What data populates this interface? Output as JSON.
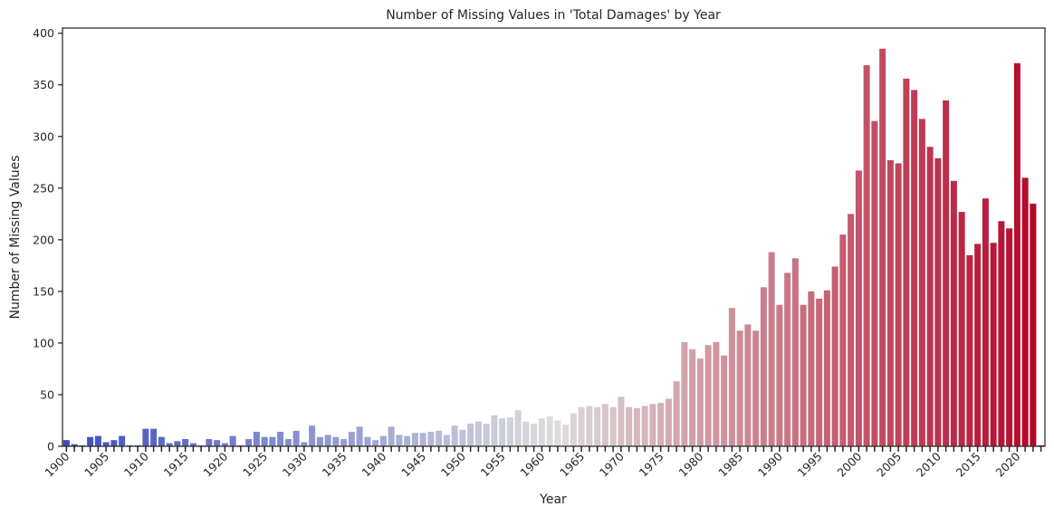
{
  "chart_data": {
    "type": "bar",
    "title": "Number of Missing Values in 'Total Damages' by Year",
    "xlabel": "Year",
    "ylabel": "Number of Missing Values",
    "ylim": [
      0,
      405
    ],
    "yticks": [
      0,
      50,
      100,
      150,
      200,
      250,
      300,
      350,
      400
    ],
    "x_tick_labels": [
      "1900",
      "1905",
      "1910",
      "1915",
      "1920",
      "1925",
      "1930",
      "1935",
      "1940",
      "1945",
      "1950",
      "1955",
      "1960",
      "1965",
      "1970",
      "1975",
      "1980",
      "1985",
      "1990",
      "1995",
      "2000",
      "2005",
      "2010",
      "2015",
      "2020"
    ],
    "grid": false,
    "colormap": "coolwarm",
    "colormap_stops": [
      "#3b4cc0",
      "#dddddd",
      "#b40426"
    ],
    "categories": [
      1900,
      1901,
      1902,
      1903,
      1904,
      1905,
      1906,
      1907,
      1908,
      1909,
      1910,
      1911,
      1912,
      1913,
      1914,
      1915,
      1916,
      1917,
      1918,
      1919,
      1920,
      1921,
      1922,
      1923,
      1924,
      1925,
      1926,
      1927,
      1928,
      1929,
      1930,
      1931,
      1932,
      1933,
      1934,
      1935,
      1936,
      1937,
      1938,
      1939,
      1940,
      1941,
      1942,
      1943,
      1944,
      1945,
      1946,
      1947,
      1948,
      1949,
      1950,
      1951,
      1952,
      1953,
      1954,
      1955,
      1956,
      1957,
      1958,
      1959,
      1960,
      1961,
      1962,
      1963,
      1964,
      1965,
      1966,
      1967,
      1968,
      1969,
      1970,
      1971,
      1972,
      1973,
      1974,
      1975,
      1976,
      1977,
      1978,
      1979,
      1980,
      1981,
      1982,
      1983,
      1984,
      1985,
      1986,
      1987,
      1988,
      1989,
      1990,
      1991,
      1992,
      1993,
      1994,
      1995,
      1996,
      1997,
      1998,
      1999,
      2000,
      2001,
      2002,
      2003,
      2004,
      2005,
      2006,
      2007,
      2008,
      2009,
      2010,
      2011,
      2012,
      2013,
      2014,
      2015,
      2016,
      2017,
      2018,
      2019,
      2020,
      2021,
      2022,
      2023
    ],
    "values": [
      6,
      2,
      1,
      9,
      10,
      4,
      6,
      10,
      1,
      1,
      17,
      17,
      9,
      3,
      5,
      7,
      3,
      1,
      7,
      6,
      3,
      10,
      1,
      7,
      14,
      9,
      9,
      14,
      7,
      15,
      4,
      20,
      9,
      11,
      9,
      7,
      14,
      19,
      9,
      6,
      10,
      19,
      11,
      10,
      13,
      13,
      14,
      15,
      11,
      20,
      16,
      22,
      24,
      22,
      30,
      27,
      28,
      35,
      24,
      22,
      27,
      29,
      25,
      21,
      32,
      38,
      39,
      38,
      41,
      38,
      48,
      38,
      37,
      39,
      41,
      42,
      46,
      63,
      101,
      94,
      85,
      98,
      101,
      88,
      134,
      112,
      118,
      112,
      154,
      188,
      137,
      168,
      182,
      137,
      150,
      143,
      151,
      174,
      205,
      225,
      267,
      369,
      315,
      385,
      277,
      274,
      356,
      345,
      317,
      290,
      279,
      335,
      257,
      227,
      185,
      196,
      240,
      197,
      218,
      211,
      371,
      260,
      235,
      1
    ]
  }
}
